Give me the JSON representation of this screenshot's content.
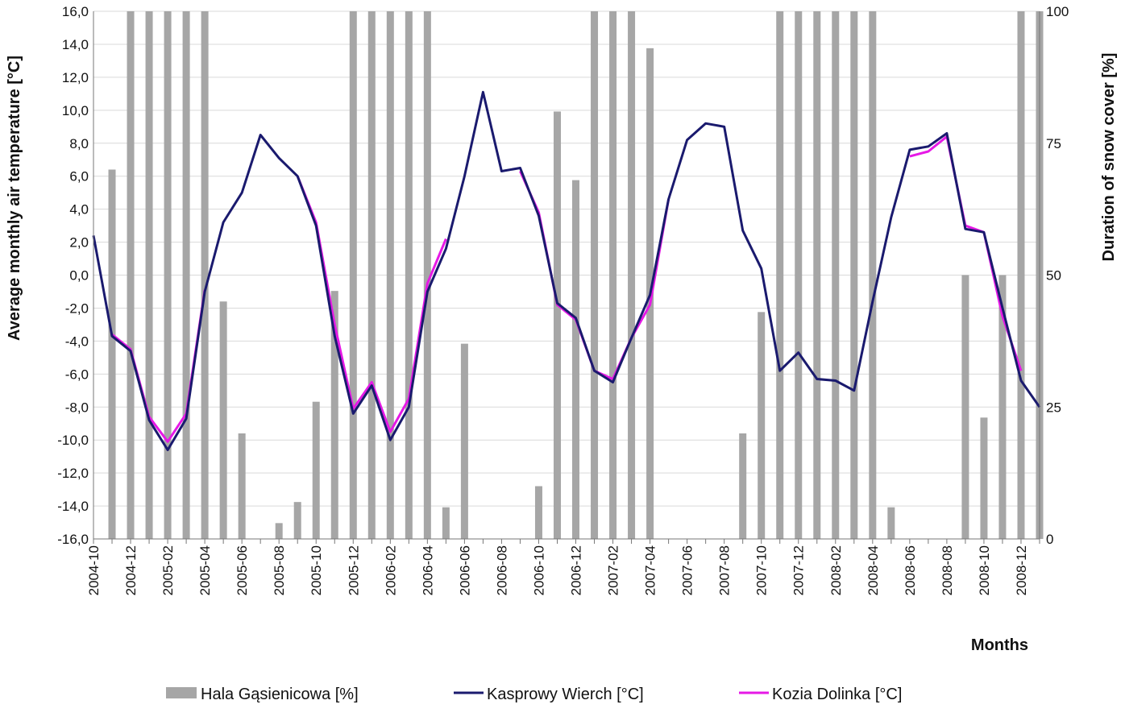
{
  "chart_data": {
    "type": "bar+line",
    "ylabel": "Average monthly air temperature [°C]",
    "y2label": "Duration of snow cover  [%]",
    "xlabel": "Months",
    "ylim": [
      -16,
      16
    ],
    "y2lim": [
      0,
      100
    ],
    "y_ticks": [
      "16,0",
      "14,0",
      "12,0",
      "10,0",
      "8,0",
      "6,0",
      "4,0",
      "2,0",
      "0,0",
      "-2,0",
      "-4,0",
      "-6,0",
      "-8,0",
      "-10,0",
      "-12,0",
      "-14,0",
      "-16,0"
    ],
    "y2_ticks": [
      "100",
      "75",
      "50",
      "25",
      "0"
    ],
    "grid": true,
    "legend_position": "bottom",
    "x": [
      "2004-10",
      "2004-11",
      "2004-12",
      "2005-01",
      "2005-02",
      "2005-03",
      "2005-04",
      "2005-05",
      "2005-06",
      "2005-07",
      "2005-08",
      "2005-09",
      "2005-10",
      "2005-11",
      "2005-12",
      "2006-01",
      "2006-02",
      "2006-03",
      "2006-04",
      "2006-05",
      "2006-06",
      "2006-07",
      "2006-08",
      "2006-09",
      "2006-10",
      "2006-11",
      "2006-12",
      "2007-01",
      "2007-02",
      "2007-03",
      "2007-04",
      "2007-05",
      "2007-06",
      "2007-07",
      "2007-08",
      "2007-09",
      "2007-10",
      "2007-11",
      "2007-12",
      "2008-01",
      "2008-02",
      "2008-03",
      "2008-04",
      "2008-05",
      "2008-06",
      "2008-07",
      "2008-08",
      "2008-09",
      "2008-10",
      "2008-11",
      "2008-12",
      "2009-01"
    ],
    "x_tick_labels": [
      "2004-10",
      "2004-12",
      "2005-02",
      "2005-04",
      "2005-06",
      "2005-08",
      "2005-10",
      "2005-12",
      "2006-02",
      "2006-04",
      "2006-06",
      "2006-08",
      "2006-10",
      "2006-12",
      "2007-02",
      "2007-04",
      "2007-06",
      "2007-08",
      "2007-10",
      "2007-12",
      "2008-02",
      "2008-04",
      "2008-06",
      "2008-08",
      "2008-10",
      "2008-12"
    ],
    "series": [
      {
        "name": "Hala Gąsienicowa [%]",
        "type": "bar",
        "axis": "right",
        "color": "#a6a6a6",
        "values": [
          0,
          70,
          100,
          100,
          100,
          100,
          100,
          45,
          20,
          0,
          3,
          7,
          26,
          47,
          100,
          100,
          100,
          100,
          100,
          6,
          37,
          0,
          0,
          0,
          10,
          81,
          68,
          100,
          100,
          100,
          93,
          0,
          0,
          0,
          0,
          20,
          43,
          100,
          100,
          100,
          100,
          100,
          100,
          6,
          0,
          0,
          0,
          50,
          23,
          50,
          100,
          100
        ]
      },
      {
        "name": "Kasprowy Wierch [°C]",
        "type": "line",
        "axis": "left",
        "color": "#1a1a6e",
        "values": [
          2.4,
          -3.7,
          -4.6,
          -8.8,
          -10.6,
          -8.7,
          -1.0,
          3.2,
          5.0,
          8.5,
          7.1,
          6.0,
          3.0,
          -3.7,
          -8.4,
          -6.7,
          -10.0,
          -8.0,
          -1.0,
          1.6,
          6.0,
          11.1,
          6.3,
          6.5,
          3.6,
          -1.7,
          -2.6,
          -5.8,
          -6.5,
          -3.8,
          -1.2,
          4.6,
          8.2,
          9.2,
          9.0,
          2.7,
          0.4,
          -5.8,
          -4.7,
          -6.3,
          -6.4,
          -7.0,
          -1.6,
          3.5,
          7.6,
          7.8,
          8.6,
          2.8,
          2.6,
          -2.0,
          -6.4,
          -8.0
        ]
      },
      {
        "name": "Kozia Dolinka [°C]",
        "type": "line",
        "axis": "left",
        "color": "#e619e6",
        "values": [
          null,
          -3.6,
          -4.5,
          -8.6,
          -10.1,
          -8.4,
          -0.9,
          null,
          null,
          null,
          null,
          6.0,
          3.2,
          -3.0,
          -8.1,
          -6.5,
          -9.5,
          -7.5,
          -0.5,
          2.2,
          null,
          null,
          null,
          6.3,
          3.8,
          -1.8,
          -2.7,
          -5.8,
          -6.3,
          -3.8,
          -1.8,
          4.6,
          null,
          null,
          null,
          null,
          null,
          null,
          null,
          null,
          null,
          null,
          null,
          null,
          7.2,
          7.5,
          8.4,
          3.0,
          2.6,
          -2.5,
          -5.8,
          null
        ]
      }
    ]
  }
}
